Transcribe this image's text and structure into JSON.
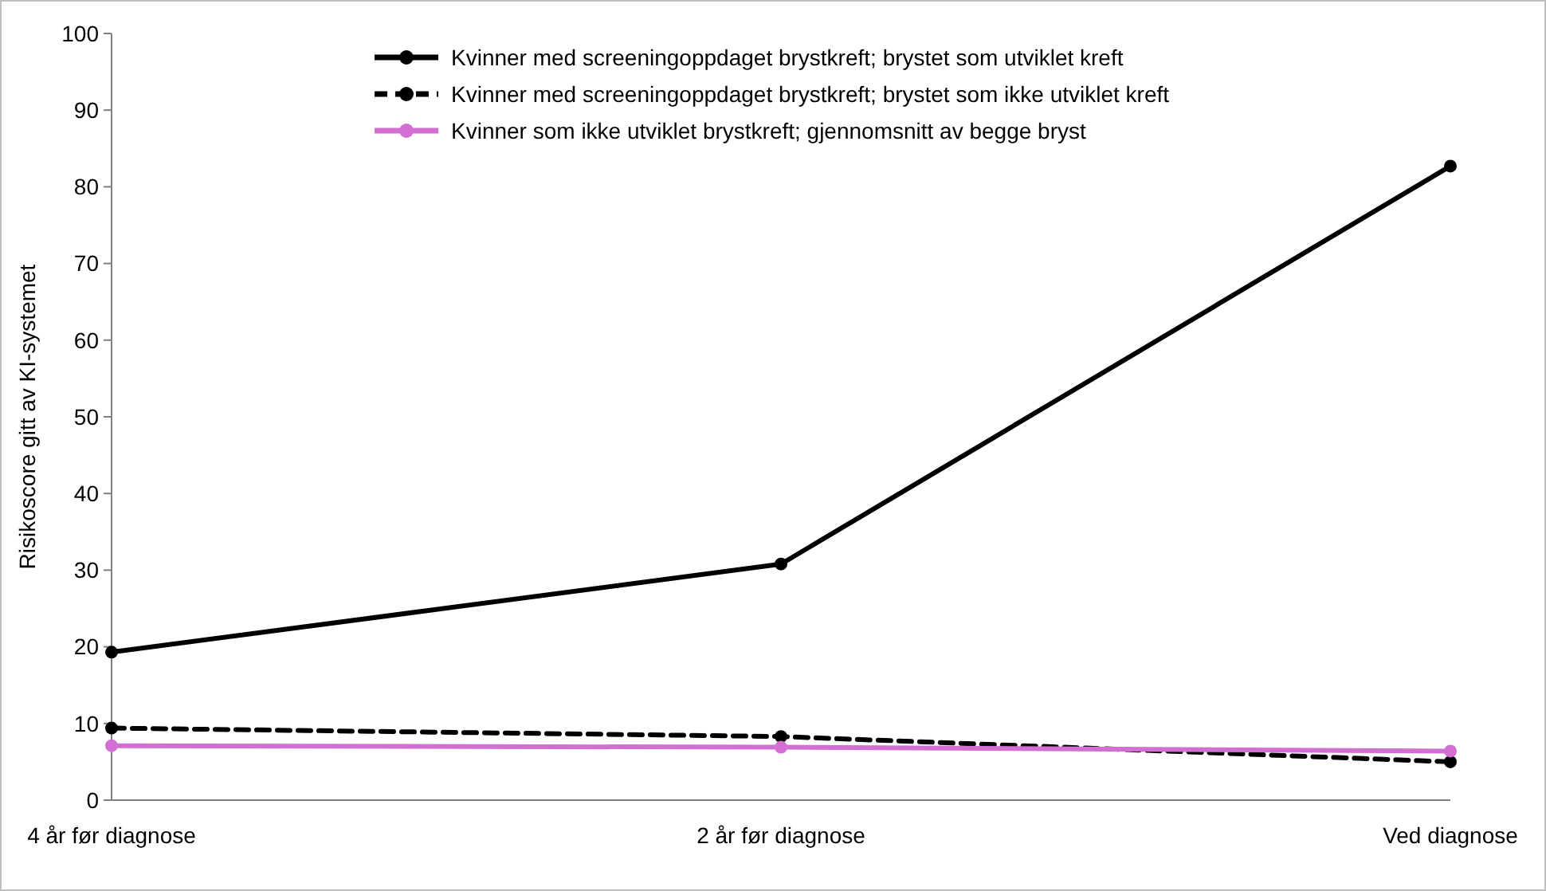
{
  "chart_data": {
    "type": "line",
    "ylabel": "Risikoscore gitt av KI-systemet",
    "categories": [
      "4 år før diagnose",
      "2 år før diagnose",
      "Ved diagnose"
    ],
    "ylim": [
      0,
      100
    ],
    "yticks": [
      0,
      10,
      20,
      30,
      40,
      50,
      60,
      70,
      80,
      90,
      100
    ],
    "grid": false,
    "legend": "top",
    "marker": "circle",
    "series": [
      {
        "name": "Kvinner med screeningoppdaget brystkreft; brystet som utviklet kreft",
        "color": "#000000",
        "line_style": "solid",
        "values": [
          19.3,
          30.8,
          82.7
        ]
      },
      {
        "name": "Kvinner med screeningoppdaget brystkreft; brystet som ikke utviklet kreft",
        "color": "#000000",
        "line_style": "dashed",
        "values": [
          9.4,
          8.3,
          5.0
        ]
      },
      {
        "name": "Kvinner som ikke utviklet brystkreft; gjennomsnitt av begge bryst",
        "color": "#d36fd3",
        "line_style": "solid",
        "values": [
          7.1,
          6.9,
          6.4
        ]
      }
    ]
  }
}
